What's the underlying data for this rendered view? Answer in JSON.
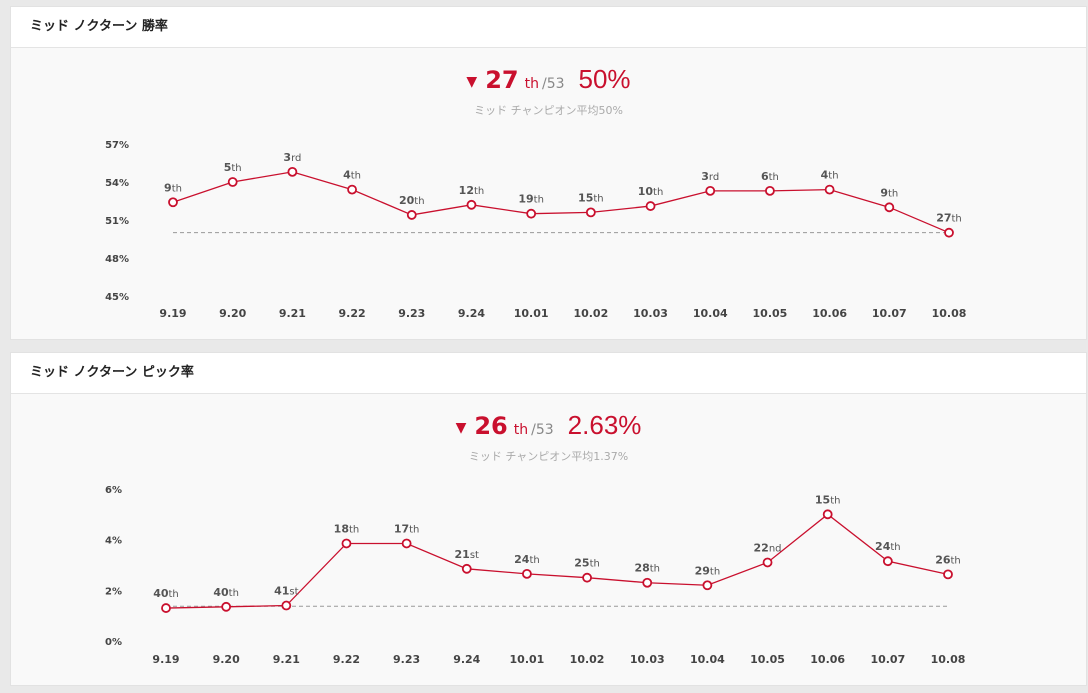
{
  "panels": [
    {
      "title": "ミッド ノクターン 勝率",
      "summary": {
        "rank": "27",
        "rank_suffix": "th",
        "rank_total": "/53",
        "rate": "50%",
        "avg_text": "ミッド チャンピオン平均50%"
      }
    },
    {
      "title": "ミッド ノクターン ピック率",
      "summary": {
        "rank": "26",
        "rank_suffix": "th",
        "rank_total": "/53",
        "rate": "2.63%",
        "avg_text": "ミッド チャンピオン平均1.37%"
      }
    }
  ],
  "colors": {
    "accent": "#c9102e",
    "average_line": "#999999"
  },
  "chart_data": [
    {
      "type": "line",
      "title": "ミッド ノクターン 勝率",
      "categories": [
        "9.19",
        "9.20",
        "9.21",
        "9.22",
        "9.23",
        "9.24",
        "10.01",
        "10.02",
        "10.03",
        "10.04",
        "10.05",
        "10.06",
        "10.07",
        "10.08"
      ],
      "values": [
        52.4,
        54.0,
        54.8,
        53.4,
        51.4,
        52.2,
        51.5,
        51.6,
        52.1,
        53.3,
        53.3,
        53.4,
        52.0,
        50.0
      ],
      "point_labels": [
        "9th",
        "5th",
        "3rd",
        "4th",
        "20th",
        "12th",
        "19th",
        "15th",
        "10th",
        "3rd",
        "6th",
        "4th",
        "9th",
        "27th"
      ],
      "average": 50,
      "yticks": [
        "57%",
        "54%",
        "51%",
        "48%",
        "45%"
      ],
      "ylim": [
        45,
        57
      ],
      "grid": false
    },
    {
      "type": "line",
      "title": "ミッド ノクターン ピック率",
      "categories": [
        "9.19",
        "9.20",
        "9.21",
        "9.22",
        "9.23",
        "9.24",
        "10.01",
        "10.02",
        "10.03",
        "10.04",
        "10.05",
        "10.06",
        "10.07",
        "10.08"
      ],
      "values": [
        1.3,
        1.35,
        1.4,
        3.85,
        3.85,
        2.85,
        2.65,
        2.5,
        2.3,
        2.2,
        3.1,
        5.0,
        3.15,
        2.63
      ],
      "point_labels": [
        "40th",
        "40th",
        "41st",
        "18th",
        "17th",
        "21st",
        "24th",
        "25th",
        "28th",
        "29th",
        "22nd",
        "15th",
        "24th",
        "26th"
      ],
      "average": 1.37,
      "yticks": [
        "6%",
        "4%",
        "2%",
        "0%"
      ],
      "ylim": [
        0,
        6
      ],
      "grid": false
    }
  ]
}
